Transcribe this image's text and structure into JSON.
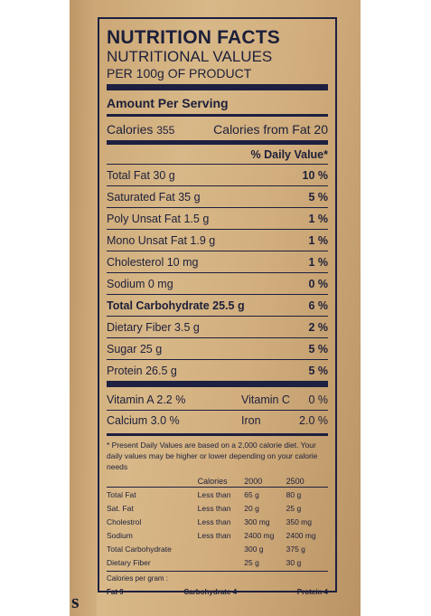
{
  "header": {
    "title": "NUTRITION FACTS",
    "subtitle": "NUTRITIONAL VALUES",
    "basis": "PER 100g OF PRODUCT"
  },
  "amount_per_serving": "Amount Per Serving",
  "calories": {
    "label": "Calories",
    "value": "355",
    "fat_label": "Calories from Fat",
    "fat_value": "20"
  },
  "daily_value_header": "% Daily Value*",
  "nutrients": [
    {
      "label": "Total Fat",
      "amount": "30 g",
      "dv": "10 %"
    },
    {
      "label": "Saturated Fat",
      "amount": "35 g",
      "dv": "5 %"
    },
    {
      "label": "Poly Unsat Fat",
      "amount": "1.5 g",
      "dv": "1 %"
    },
    {
      "label": "Mono Unsat Fat",
      "amount": "1.9 g",
      "dv": "1 %"
    },
    {
      "label": "Cholesterol",
      "amount": "10 mg",
      "dv": "1 %"
    },
    {
      "label": "Sodium",
      "amount": "0 mg",
      "dv": "0 %"
    },
    {
      "label": "Total Carbohydrate",
      "amount": "25.5 g",
      "dv": "6 %"
    },
    {
      "label": "Dietary Fiber",
      "amount": "3.5 g",
      "dv": "2 %"
    },
    {
      "label": "Sugar",
      "amount": "25 g",
      "dv": "5 %"
    },
    {
      "label": "Protein",
      "amount": "26.5 g",
      "dv": "5 %"
    }
  ],
  "vitamins": [
    {
      "l_label": "Vitamin A",
      "l_val": "2.2 %",
      "r_label": "Vitamin C",
      "r_val": "0 %"
    },
    {
      "l_label": "Calcium",
      "l_val": "3.0 %",
      "r_label": "Iron",
      "r_val": "2.0 %"
    }
  ],
  "footnote": "* Present Daily Values are based on a 2,000 calorie diet. Your daily values may be higher or lower depending on your calorie needs",
  "reference": {
    "header": [
      "",
      "Calories",
      "2000",
      "2500"
    ],
    "rows": [
      [
        "Total Fat",
        "Less than",
        "65 g",
        "80 g"
      ],
      [
        "Sat. Fat",
        "Less than",
        "20 g",
        "25 g"
      ],
      [
        "Cholestrol",
        "Less than",
        "300 mg",
        "350 mg"
      ],
      [
        "Sodium",
        "Less than",
        "2400 mg",
        "2400 mg"
      ],
      [
        "Total Carbohydrate",
        "",
        "300 g",
        "375 g"
      ],
      [
        "Dietary Fiber",
        "",
        "25 g",
        "30 g"
      ]
    ]
  },
  "calories_per_gram": {
    "label": "Calories per gram :",
    "fat": "Fat 9",
    "carb": "Carbohydrate 4",
    "protein": "Protein 4"
  },
  "fragment_text": "s"
}
